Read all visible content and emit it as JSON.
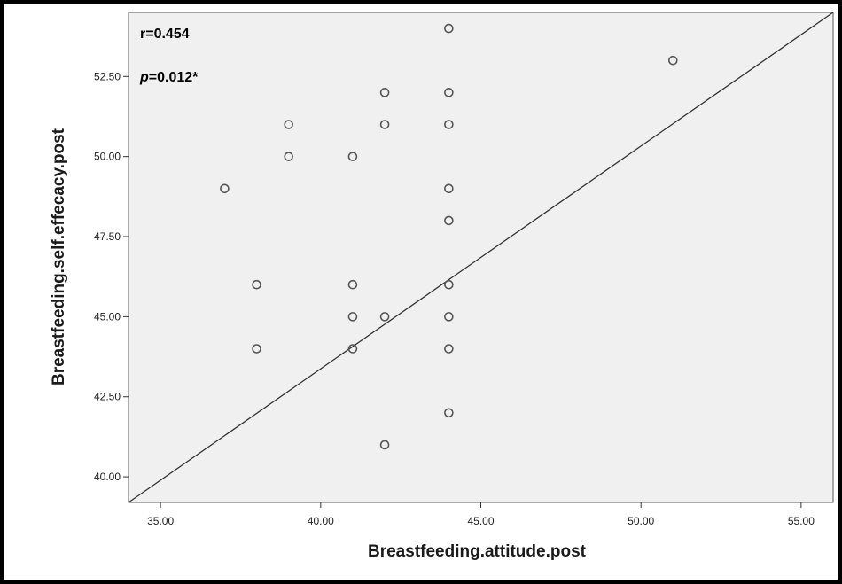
{
  "chart_data": {
    "type": "scatter",
    "xlabel": "Breastfeeding.attitude.post",
    "ylabel": "Breastfeeding.self.effecacy.post",
    "xlim": [
      34.0,
      56.0
    ],
    "ylim": [
      39.2,
      54.5
    ],
    "x_ticks": [
      "35.00",
      "40.00",
      "45.00",
      "50.00",
      "55.00"
    ],
    "y_ticks": [
      "40.00",
      "42.50",
      "45.00",
      "47.50",
      "50.00",
      "52.50"
    ],
    "annotations": {
      "r_text": "r=0.454",
      "p_italic": "p",
      "p_rest": "=0.012*"
    },
    "fit_line": {
      "x": [
        34.0,
        56.0
      ],
      "y": [
        39.2,
        54.5
      ]
    },
    "points": [
      {
        "x": 37,
        "y": 49
      },
      {
        "x": 38,
        "y": 46
      },
      {
        "x": 38,
        "y": 44
      },
      {
        "x": 39,
        "y": 51
      },
      {
        "x": 39,
        "y": 50
      },
      {
        "x": 41,
        "y": 50
      },
      {
        "x": 41,
        "y": 46
      },
      {
        "x": 41,
        "y": 45
      },
      {
        "x": 41,
        "y": 44
      },
      {
        "x": 42,
        "y": 52
      },
      {
        "x": 42,
        "y": 51
      },
      {
        "x": 42,
        "y": 45
      },
      {
        "x": 42,
        "y": 41
      },
      {
        "x": 44,
        "y": 54
      },
      {
        "x": 44,
        "y": 52
      },
      {
        "x": 44,
        "y": 51
      },
      {
        "x": 44,
        "y": 49
      },
      {
        "x": 44,
        "y": 48
      },
      {
        "x": 44,
        "y": 46
      },
      {
        "x": 44,
        "y": 45
      },
      {
        "x": 44,
        "y": 44
      },
      {
        "x": 44,
        "y": 42
      },
      {
        "x": 51,
        "y": 53
      }
    ],
    "grid": false,
    "colors": {
      "plot_bg": "#f0f0f0",
      "frame": "#000000",
      "marker": "#555555",
      "line": "#333333"
    }
  }
}
